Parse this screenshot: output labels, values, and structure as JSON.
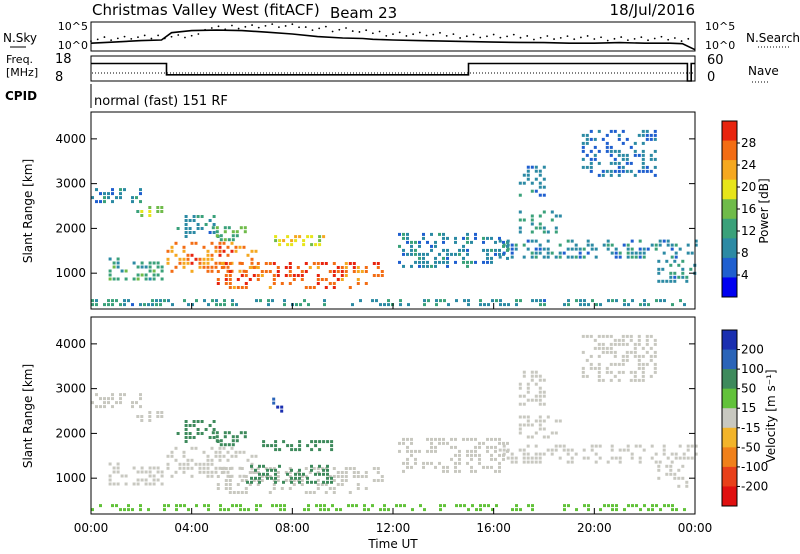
{
  "header": {
    "title": "Christmas Valley West (fitACF)",
    "beam": "Beam 23",
    "date": "18/Jul/2016"
  },
  "colors": {
    "noise_line": "#000000",
    "ground_scatter": "#c8c8c0",
    "background": "#ffffff"
  },
  "chart_data": [
    {
      "type": "line",
      "name": "noise-panel",
      "left_label": "N.Sky",
      "right_label": "N.Search",
      "left_ticks": [
        "10^5",
        "10^0"
      ],
      "right_ticks": [
        "10^5",
        "10^0"
      ],
      "x": [
        0,
        0.5,
        1,
        2,
        2.8,
        3.2,
        4,
        5,
        6,
        7,
        8,
        9,
        10,
        10.8,
        11.2,
        12,
        13,
        14,
        15,
        16,
        17,
        18,
        19,
        20,
        21,
        22,
        23,
        23.5,
        24
      ],
      "values": [
        0.3,
        0.32,
        0.35,
        0.4,
        0.42,
        0.7,
        0.78,
        0.8,
        0.78,
        0.72,
        0.65,
        0.55,
        0.5,
        0.48,
        0.45,
        0.42,
        0.4,
        0.38,
        0.36,
        0.34,
        0.33,
        0.32,
        0.3,
        0.3,
        0.32,
        0.3,
        0.3,
        0.28,
        0.05
      ]
    },
    {
      "type": "line",
      "name": "freq-panel",
      "left_label": "Freq.",
      "left_unit": "[MHz]",
      "left_ticks": [
        "18",
        "8"
      ],
      "right_ticks": [
        "60",
        "0"
      ],
      "right_label": "Nave",
      "x": [
        0,
        3,
        3,
        15,
        15,
        23.7,
        23.7,
        23.85,
        23.85,
        24
      ],
      "values": [
        15,
        15,
        10.5,
        10.5,
        15,
        15,
        8,
        8,
        15,
        15
      ]
    },
    {
      "type": "heatmap",
      "name": "cpid",
      "label": "CPID",
      "program": "normal (fast) 151 RF"
    },
    {
      "type": "heatmap",
      "name": "power",
      "ylabel": "Slant Range [km]",
      "yticks": [
        1000,
        2000,
        3000,
        4000
      ],
      "ylim": [
        200,
        4600
      ],
      "xlim": [
        0,
        24
      ],
      "colorbar_label": "Power [dB]",
      "colorbar_ticks": [
        4,
        8,
        12,
        16,
        20,
        24,
        28
      ],
      "colorbar_range": [
        0,
        32
      ],
      "colors": [
        "#0000f0",
        "#1f5fcf",
        "#2c8aa4",
        "#3aa17a",
        "#6fbb4a",
        "#e7e51a",
        "#f5a820",
        "#f36d14",
        "#e8240e"
      ],
      "regions": [
        {
          "t0": 0.0,
          "t1": 2.0,
          "r0": 2600,
          "r1": 2900,
          "v": 9
        },
        {
          "t0": 1.8,
          "t1": 2.8,
          "r0": 2250,
          "r1": 2500,
          "v": 16
        },
        {
          "t0": 0.7,
          "t1": 2.8,
          "r0": 850,
          "r1": 1350,
          "v": 12
        },
        {
          "t0": 3.0,
          "t1": 6.6,
          "r0": 1050,
          "r1": 1700,
          "v": 26
        },
        {
          "t0": 3.4,
          "t1": 5.0,
          "r0": 1800,
          "r1": 2300,
          "v": 10
        },
        {
          "t0": 4.8,
          "t1": 6.2,
          "r0": 1750,
          "r1": 2050,
          "v": 14
        },
        {
          "t0": 5.0,
          "t1": 11.6,
          "r0": 700,
          "r1": 1250,
          "v": 27
        },
        {
          "t0": 6.8,
          "t1": 9.6,
          "r0": 1650,
          "r1": 1850,
          "v": 20
        },
        {
          "t0": 12.2,
          "t1": 16.6,
          "r0": 1100,
          "r1": 1900,
          "v": 9
        },
        {
          "t0": 16.2,
          "t1": 24.0,
          "r0": 1350,
          "r1": 1750,
          "v": 9
        },
        {
          "t0": 17.0,
          "t1": 18.6,
          "r0": 1900,
          "r1": 2400,
          "v": 11
        },
        {
          "t0": 17.0,
          "t1": 18.0,
          "r0": 2600,
          "r1": 3400,
          "v": 8
        },
        {
          "t0": 19.5,
          "t1": 22.5,
          "r0": 3200,
          "r1": 4200,
          "v": 7
        },
        {
          "t0": 22.5,
          "t1": 24.0,
          "r0": 800,
          "r1": 1300,
          "v": 10
        },
        {
          "t0": 0.0,
          "t1": 24.0,
          "r0": 250,
          "r1": 420,
          "v": 10
        }
      ]
    },
    {
      "type": "heatmap",
      "name": "velocity",
      "ylabel": "Slant Range [km]",
      "yticks": [
        1000,
        2000,
        3000,
        4000
      ],
      "ylim": [
        200,
        4600
      ],
      "xlim": [
        0,
        24
      ],
      "xticks": [
        "00:00",
        "04:00",
        "08:00",
        "12:00",
        "16:00",
        "20:00",
        "00:00"
      ],
      "xlabel": "Time UT",
      "colorbar_label": "Velocity [m s⁻¹]",
      "colorbar_ticks": [
        "200",
        "100",
        "50",
        "15",
        "-15",
        "-50",
        "-100",
        "-200"
      ],
      "colors": [
        "#1a2fb0",
        "#2a64b8",
        "#3e8a5c",
        "#62c23a",
        "#c8c8c0",
        "#f2b42a",
        "#f0801a",
        "#e8401a",
        "#e01010"
      ],
      "regions": [
        {
          "t0": 0.0,
          "t1": 2.0,
          "r0": 2600,
          "r1": 2900,
          "v": 0
        },
        {
          "t0": 1.8,
          "t1": 2.8,
          "r0": 2250,
          "r1": 2500,
          "v": 0
        },
        {
          "t0": 0.7,
          "t1": 2.8,
          "r0": 850,
          "r1": 1350,
          "v": 0
        },
        {
          "t0": 3.0,
          "t1": 6.6,
          "r0": 1050,
          "r1": 1700,
          "v": 0
        },
        {
          "t0": 3.4,
          "t1": 5.0,
          "r0": 1800,
          "r1": 2300,
          "v": 40
        },
        {
          "t0": 4.8,
          "t1": 6.2,
          "r0": 1750,
          "r1": 2050,
          "v": 60
        },
        {
          "t0": 5.0,
          "t1": 11.6,
          "r0": 700,
          "r1": 1250,
          "v": 0
        },
        {
          "t0": 6.0,
          "t1": 9.6,
          "r0": 900,
          "r1": 1300,
          "v": 35
        },
        {
          "t0": 6.8,
          "t1": 9.6,
          "r0": 1650,
          "r1": 1850,
          "v": 40
        },
        {
          "t0": 7.2,
          "t1": 7.6,
          "r0": 2400,
          "r1": 2800,
          "v": 150
        },
        {
          "t0": 12.2,
          "t1": 16.6,
          "r0": 1100,
          "r1": 1900,
          "v": 0
        },
        {
          "t0": 16.2,
          "t1": 24.0,
          "r0": 1350,
          "r1": 1750,
          "v": 0
        },
        {
          "t0": 17.0,
          "t1": 18.6,
          "r0": 1900,
          "r1": 2400,
          "v": 0
        },
        {
          "t0": 17.0,
          "t1": 18.0,
          "r0": 2600,
          "r1": 3400,
          "v": 0
        },
        {
          "t0": 19.5,
          "t1": 22.5,
          "r0": 3200,
          "r1": 4200,
          "v": 0
        },
        {
          "t0": 22.5,
          "t1": 24.0,
          "r0": 800,
          "r1": 1300,
          "v": 0
        },
        {
          "t0": 0.0,
          "t1": 24.0,
          "r0": 250,
          "r1": 420,
          "v": 25
        }
      ]
    }
  ]
}
